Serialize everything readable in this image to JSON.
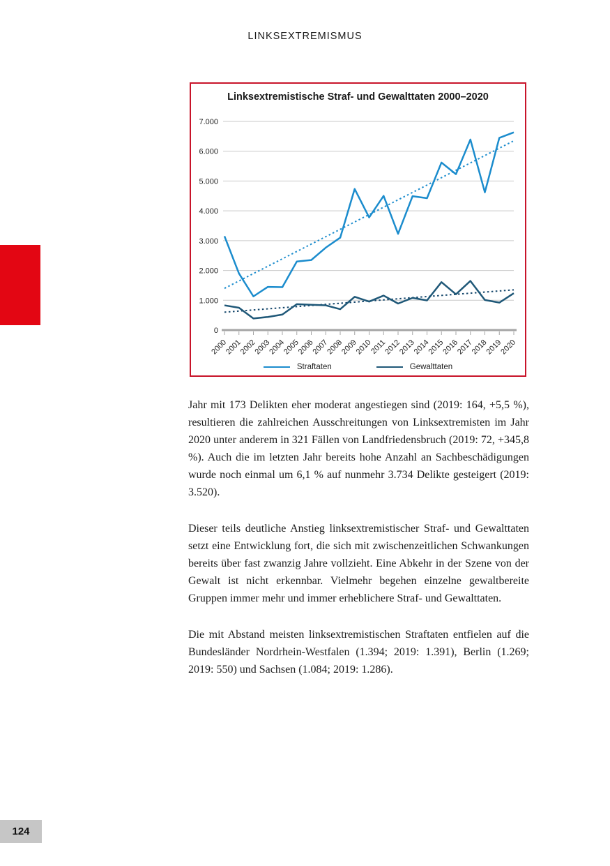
{
  "page": {
    "header": "LINKSEXTREMISMUS",
    "page_number": "124"
  },
  "accent_colors": {
    "chapter_tab_red": "#e30613",
    "chart_border_red": "#c8142a",
    "page_badge_gray": "#c6c6c6",
    "gridline_gray": "#c9c9c9",
    "axis_gray": "#a5a5a5"
  },
  "chart_data": {
    "type": "line",
    "title": "Linksextremistische Straf- und Gewalttaten 2000–2020",
    "categories": [
      "2000",
      "2001",
      "2002",
      "2003",
      "2004",
      "2005",
      "2006",
      "2007",
      "2008",
      "2009",
      "2010",
      "2011",
      "2012",
      "2013",
      "2014",
      "2015",
      "2016",
      "2017",
      "2018",
      "2019",
      "2020"
    ],
    "series": [
      {
        "name": "Straftaten",
        "color": "#1b8ccd",
        "values": [
          3150,
          1900,
          1130,
          1450,
          1440,
          2300,
          2350,
          2765,
          3100,
          4734,
          3780,
          4502,
          3229,
          4491,
          4424,
          5620,
          5230,
          6393,
          4622,
          6449,
          6632
        ]
      },
      {
        "name": "Gewalttaten",
        "color": "#1f5878",
        "values": [
          830,
          750,
          390,
          440,
          520,
          870,
          850,
          830,
          700,
          1115,
          955,
          1157,
          890,
          1080,
          995,
          1608,
          1201,
          1648,
          1010,
          921,
          1237
        ]
      }
    ],
    "trendlines": [
      {
        "series": "Straftaten",
        "color": "#1b8ccd",
        "start": 1400,
        "end": 6350,
        "style": "dotted"
      },
      {
        "series": "Gewalttaten",
        "color": "#14466b",
        "start": 600,
        "end": 1350,
        "style": "dotted"
      }
    ],
    "ylim": [
      0,
      7000
    ],
    "y_ticks": [
      "7.000",
      "6.000",
      "5.000",
      "4.000",
      "3.000",
      "2.000",
      "1.000",
      "0"
    ],
    "grid": "horizontal",
    "legend_position": "bottom",
    "xlabel": "",
    "ylabel": ""
  },
  "article": {
    "paragraphs": [
      "Jahr mit 173 Delikten eher moderat angestiegen sind (2019: 164, +5,5 %), resultieren die zahlreichen Ausschreitungen von Linksextremisten im Jahr 2020 unter anderem in 321 Fällen von Landfriedensbruch (2019: 72, +345,8 %). Auch die im letzten Jahr bereits hohe Anzahl an Sachbeschädigungen wurde noch einmal um 6,1 % auf nunmehr 3.734 Delikte gesteigert (2019: 3.520).",
      "Dieser teils deutliche Anstieg linksextremistischer Straf- und Gewalttaten setzt eine Entwicklung fort, die sich mit zwischenzeitlichen Schwankungen bereits über fast zwanzig Jahre vollzieht. Eine Abkehr in der Szene von der Gewalt ist nicht erkennbar. Vielmehr begehen einzelne gewaltbereite Gruppen immer mehr und immer erheblichere Straf- und Gewalttaten.",
      "Die mit Abstand meisten linksextremistischen Straftaten entfielen auf die Bundesländer Nordrhein-Westfalen (1.394; 2019: 1.391), Berlin (1.269; 2019: 550) und Sachsen (1.084; 2019: 1.286)."
    ]
  }
}
